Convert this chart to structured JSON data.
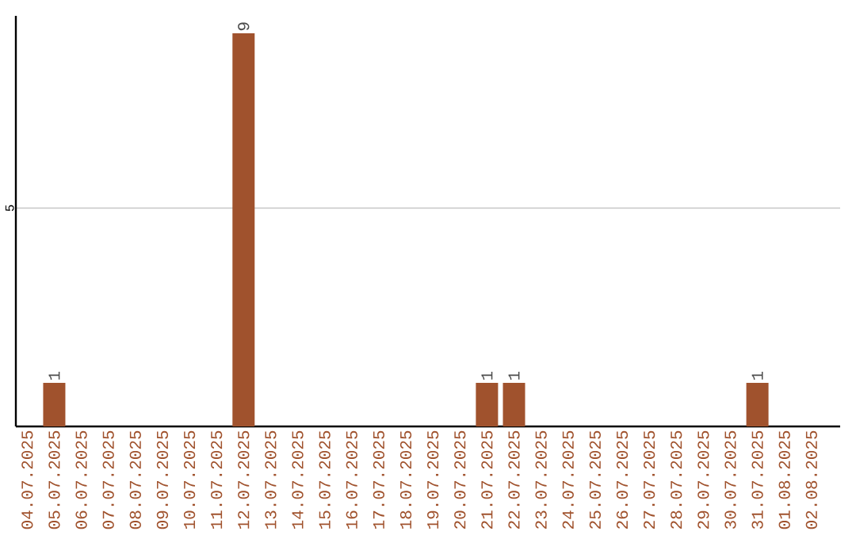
{
  "chart_data": {
    "type": "bar",
    "categories": [
      "04.07.2025",
      "05.07.2025",
      "06.07.2025",
      "07.07.2025",
      "08.07.2025",
      "09.07.2025",
      "10.07.2025",
      "11.07.2025",
      "12.07.2025",
      "13.07.2025",
      "14.07.2025",
      "15.07.2025",
      "16.07.2025",
      "17.07.2025",
      "18.07.2025",
      "19.07.2025",
      "20.07.2025",
      "21.07.2025",
      "22.07.2025",
      "23.07.2025",
      "24.07.2025",
      "25.07.2025",
      "26.07.2025",
      "27.07.2025",
      "28.07.2025",
      "29.07.2025",
      "30.07.2025",
      "31.07.2025",
      "01.08.2025",
      "02.08.2025"
    ],
    "values": [
      0,
      1,
      0,
      0,
      0,
      0,
      0,
      0,
      9,
      0,
      0,
      0,
      0,
      0,
      0,
      0,
      0,
      1,
      1,
      0,
      0,
      0,
      0,
      0,
      0,
      0,
      0,
      1,
      0,
      0
    ],
    "value_labels": [
      null,
      "1",
      null,
      null,
      null,
      null,
      null,
      null,
      "9",
      null,
      null,
      null,
      null,
      null,
      null,
      null,
      null,
      "1",
      "1",
      null,
      null,
      null,
      null,
      null,
      null,
      null,
      null,
      "1",
      null,
      null
    ],
    "color": "#a0522d",
    "ylim": [
      0,
      9.4
    ],
    "yticks": [
      5
    ],
    "grid": "y"
  }
}
